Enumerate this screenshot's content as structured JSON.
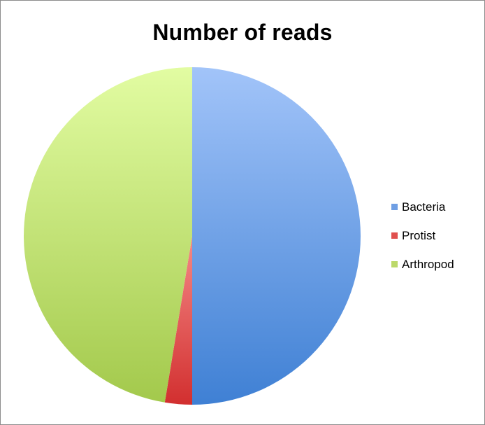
{
  "chart_data": {
    "type": "pie",
    "title": "Number of reads",
    "categories": [
      "Bacteria",
      "Protist",
      "Arthropod"
    ],
    "values": [
      50,
      2.6,
      47.4
    ],
    "colors": [
      "#6f9fe4",
      "#e0504e",
      "#bcd96a"
    ],
    "legend_position": "right",
    "start_angle": "12 o'clock",
    "direction": "clockwise"
  }
}
